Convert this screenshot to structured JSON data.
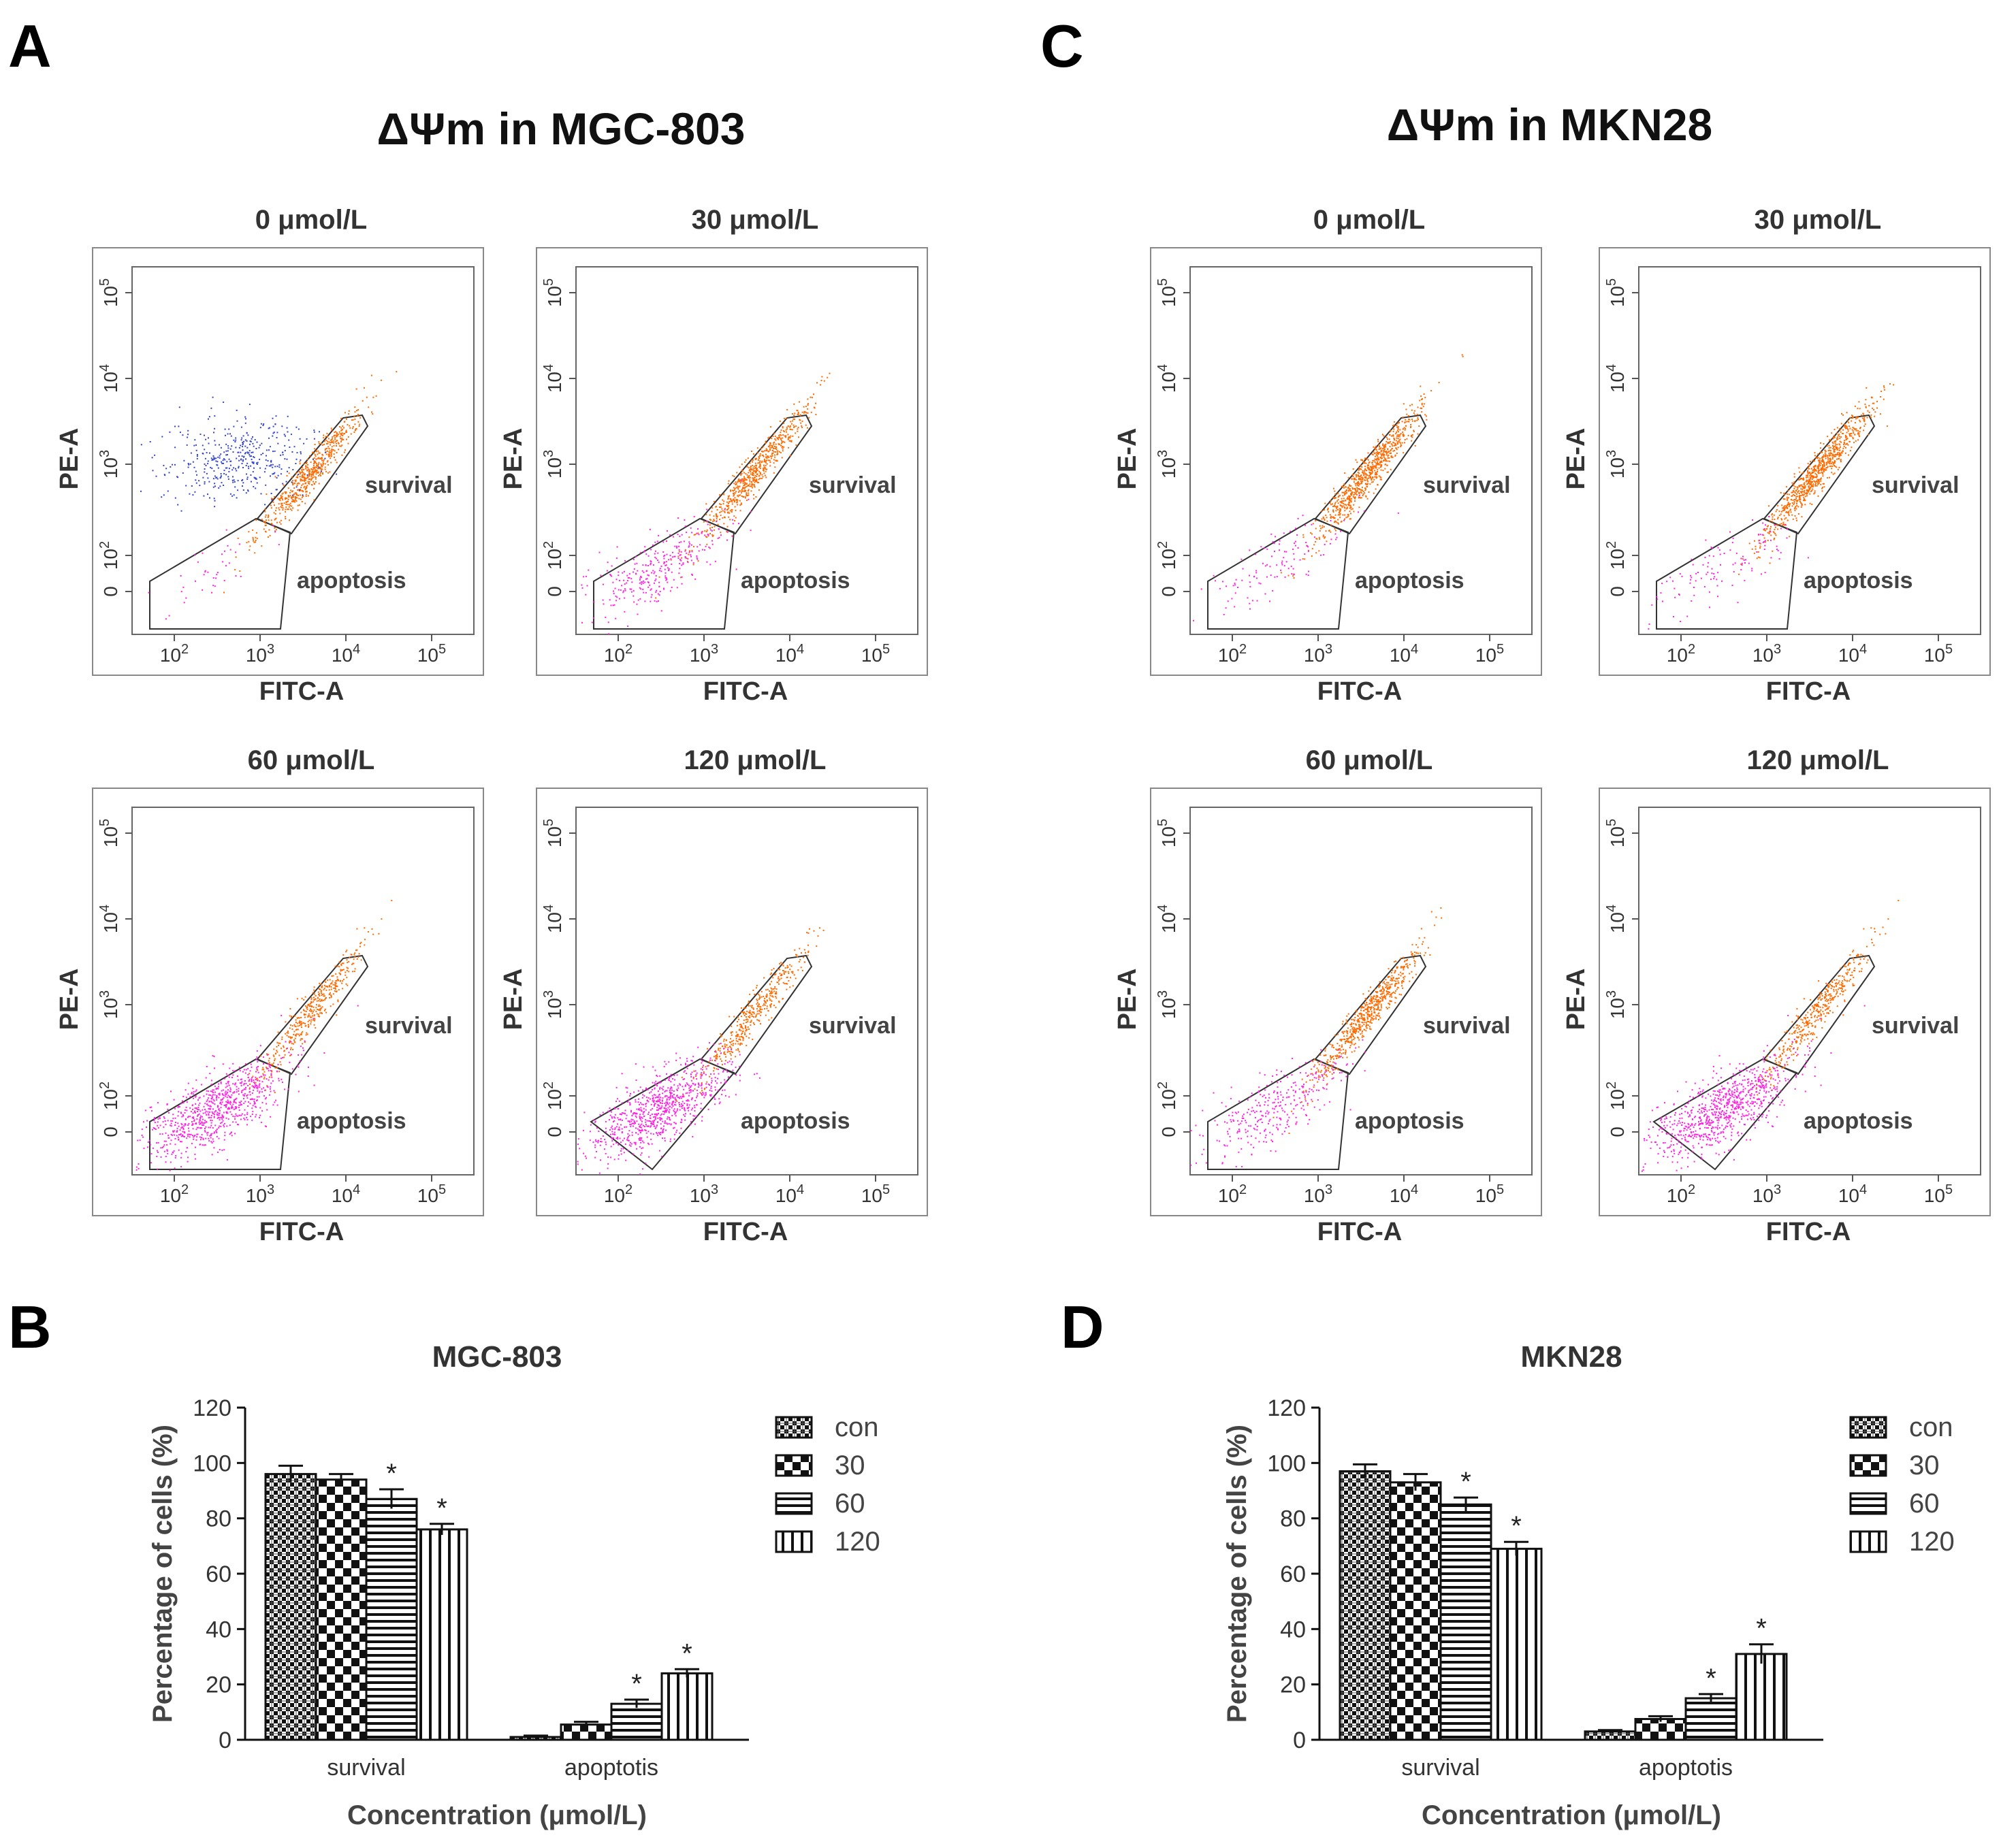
{
  "panel_letters": {
    "a": "A",
    "b": "B",
    "c": "C",
    "d": "D"
  },
  "flow_sections": [
    {
      "title": "ΔΨm in MGC-803"
    },
    {
      "title": "ΔΨm in MKN28"
    }
  ],
  "flow_plots": [
    {
      "title": "0 μmol/L",
      "population": "blue-heavy"
    },
    {
      "title": "30 μmol/L",
      "population": "mixed"
    },
    {
      "title": "60 μmol/L",
      "population": "magenta-heavy"
    },
    {
      "title": "120 μmol/L",
      "population": "magenta-heavy"
    },
    {
      "title": "0 μmol/L",
      "population": "orange"
    },
    {
      "title": "30 μmol/L",
      "population": "orange"
    },
    {
      "title": "60 μmol/L",
      "population": "mixed"
    },
    {
      "title": "120 μmol/L",
      "population": "magenta-heavy"
    }
  ],
  "flow_axes": {
    "x_label": "FITC-A",
    "y_label": "PE-A",
    "x_ticks": [
      {
        "base": "10",
        "exp": "2"
      },
      {
        "base": "10",
        "exp": "3"
      },
      {
        "base": "10",
        "exp": "4"
      },
      {
        "base": "10",
        "exp": "5"
      }
    ],
    "y_ticks": [
      {
        "base": "0",
        "exp": ""
      },
      {
        "base": "10",
        "exp": "2"
      },
      {
        "base": "10",
        "exp": "3"
      },
      {
        "base": "10",
        "exp": "4"
      },
      {
        "base": "10",
        "exp": "5"
      }
    ]
  },
  "gate_labels": {
    "survival": "survival",
    "apoptosis": "apoptosis"
  },
  "colors": {
    "survival_pop": "#ff6a00",
    "apoptosis_pop": "#ff22e0",
    "unstained_pop": "#3344cc",
    "gate": "#333333"
  },
  "chart_data": [
    {
      "type": "bar",
      "title": "MGC-803",
      "xlabel": "Concentration (μmol/L)",
      "ylabel": "Percentage of cells (%)",
      "ylim": [
        0,
        120
      ],
      "yticks": [
        "0",
        "20",
        "40",
        "60",
        "80",
        "100",
        "120"
      ],
      "categories": [
        "survival",
        "apoptotis"
      ],
      "series": [
        {
          "name": "con",
          "values": [
            96,
            1
          ],
          "errors": [
            3,
            0.5
          ],
          "pattern": "dense-check"
        },
        {
          "name": "30",
          "values": [
            94,
            5.5
          ],
          "errors": [
            2,
            1
          ],
          "pattern": "checker"
        },
        {
          "name": "60",
          "values": [
            87,
            13
          ],
          "errors": [
            3.5,
            1.5
          ],
          "pattern": "horizontal"
        },
        {
          "name": "120",
          "values": [
            76,
            24
          ],
          "errors": [
            2,
            1.5
          ],
          "pattern": "vertical"
        }
      ],
      "significance": [
        [
          false,
          false
        ],
        [
          false,
          false
        ],
        [
          true,
          true
        ],
        [
          true,
          true
        ]
      ],
      "significance_mark": "*"
    },
    {
      "type": "bar",
      "title": "MKN28",
      "xlabel": "Concentration (μmol/L)",
      "ylabel": "Percentage of cells (%)",
      "ylim": [
        0,
        120
      ],
      "yticks": [
        "0",
        "20",
        "40",
        "60",
        "80",
        "100",
        "120"
      ],
      "categories": [
        "survival",
        "apoptotis"
      ],
      "series": [
        {
          "name": "con",
          "values": [
            97,
            3
          ],
          "errors": [
            2.5,
            0.5
          ],
          "pattern": "dense-check"
        },
        {
          "name": "30",
          "values": [
            93,
            7.5
          ],
          "errors": [
            3,
            1
          ],
          "pattern": "checker"
        },
        {
          "name": "60",
          "values": [
            85,
            15
          ],
          "errors": [
            2.5,
            1.5
          ],
          "pattern": "horizontal"
        },
        {
          "name": "120",
          "values": [
            69,
            31
          ],
          "errors": [
            2.5,
            3.5
          ],
          "pattern": "vertical"
        }
      ],
      "significance": [
        [
          false,
          false
        ],
        [
          false,
          false
        ],
        [
          true,
          true
        ],
        [
          true,
          true
        ]
      ],
      "significance_mark": "*"
    }
  ]
}
